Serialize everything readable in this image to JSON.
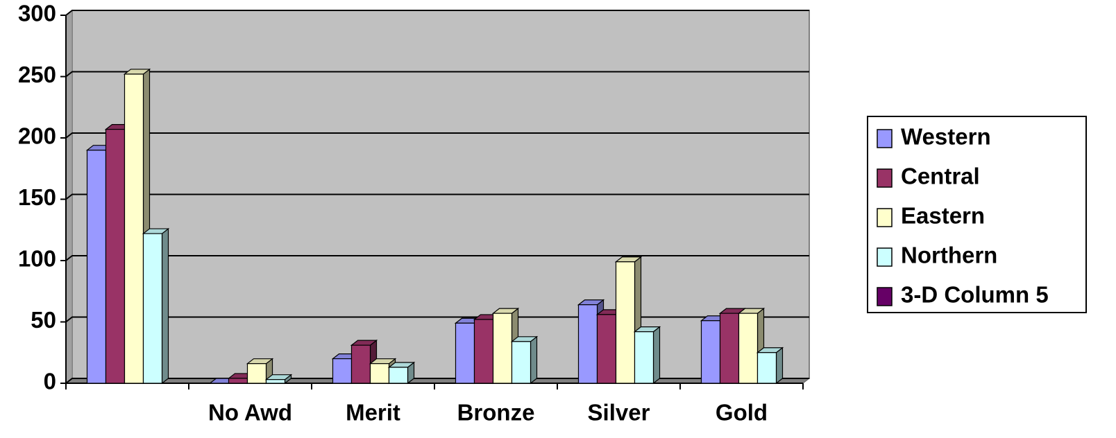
{
  "chart_data": {
    "type": "bar3d",
    "categories": [
      null,
      "No Awd",
      "Merit",
      "Bronze",
      "Silver",
      "Gold"
    ],
    "series": [
      {
        "name": "Western",
        "color": "#9999ff",
        "values": [
          190,
          0,
          20,
          49,
          64,
          51
        ]
      },
      {
        "name": "Central",
        "color": "#993366",
        "values": [
          207,
          4,
          31,
          52,
          56,
          57
        ]
      },
      {
        "name": "Eastern",
        "color": "#ffffcc",
        "values": [
          252,
          16,
          16,
          57,
          99,
          57
        ]
      },
      {
        "name": "Northern",
        "color": "#ccffff",
        "values": [
          122,
          3,
          13,
          34,
          42,
          25
        ]
      },
      {
        "name": "3-D Column 5",
        "color": "#660066",
        "values": [
          null,
          null,
          null,
          null,
          null,
          null
        ]
      }
    ],
    "ylim": [
      0,
      300
    ],
    "yticks": [
      0,
      50,
      100,
      150,
      200,
      250,
      300
    ],
    "grid": true,
    "legend": "right"
  }
}
